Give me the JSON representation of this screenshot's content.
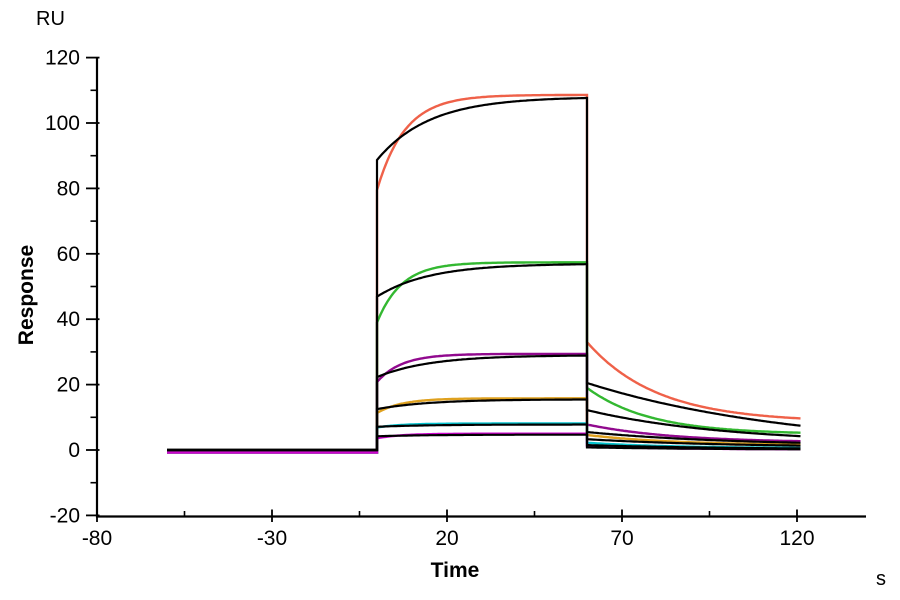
{
  "labels": {
    "y_unit": "RU",
    "y_title": "Response",
    "x_title": "Time",
    "x_unit": "s"
  },
  "axes": {
    "x": {
      "title": "Time",
      "unit": "s",
      "range": [
        -80,
        140
      ],
      "major_ticks": [
        -80,
        -30,
        20,
        70,
        120
      ],
      "minor_ticks": [
        -55,
        -5,
        45,
        95
      ]
    },
    "y": {
      "title": "Response",
      "unit": "RU",
      "range": [
        -20,
        120
      ],
      "major_ticks": [
        120,
        100,
        80,
        60,
        40,
        20,
        0,
        -20
      ],
      "minor_ticks": [
        110,
        90,
        70,
        50,
        30,
        10,
        -10
      ]
    }
  },
  "chart_data": {
    "type": "line",
    "description": "SPR sensorgram: six concentration traces (colored) with overlaid black kinetic fit curves; baseline, association and dissociation phases.",
    "grid": false,
    "legend": false,
    "phases": {
      "baseline": [
        -60,
        0
      ],
      "association": [
        0,
        60
      ],
      "dissociation": [
        60,
        121
      ]
    },
    "series": [
      {
        "name": "trace-1",
        "color": "#ef6149",
        "baseline": -0.8,
        "assoc": {
          "start": 79.5,
          "end": 108.6,
          "tau": 8
        },
        "dissoc": {
          "start": 33.0,
          "end_asymptote": 8.5,
          "tau": 20,
          "value_at_t121": 9.8
        }
      },
      {
        "name": "trace-2",
        "color": "#33b831",
        "baseline": -0.8,
        "assoc": {
          "start": 39.0,
          "end": 57.4,
          "tau": 7
        },
        "dissoc": {
          "start": 19.0,
          "end_asymptote": 4.8,
          "tau": 18,
          "value_at_t121": 5.3
        }
      },
      {
        "name": "trace-3",
        "color": "#91098e",
        "baseline": -0.8,
        "assoc": {
          "start": 20.8,
          "end": 29.4,
          "tau": 7
        },
        "dissoc": {
          "start": 7.8,
          "end_asymptote": 2.2,
          "tau": 25,
          "value_at_t121": 2.7
        }
      },
      {
        "name": "trace-4",
        "color": "#dfa11f",
        "baseline": -0.8,
        "assoc": {
          "start": 11.3,
          "end": 15.8,
          "tau": 7
        },
        "dissoc": {
          "start": 4.6,
          "end_asymptote": 1.4,
          "tau": 25,
          "value_at_t121": 1.8
        }
      },
      {
        "name": "trace-5",
        "color": "#06c3ce",
        "baseline": -0.8,
        "assoc": {
          "start": 6.9,
          "end": 8.1,
          "tau": 7
        },
        "dissoc": {
          "start": 2.2,
          "end_asymptote": 0.5,
          "tau": 25,
          "value_at_t121": 0.7
        }
      },
      {
        "name": "trace-6",
        "color": "#cf06cf",
        "baseline": -0.8,
        "assoc": {
          "start": 3.6,
          "end": 5.0,
          "tau": 7
        },
        "dissoc": {
          "start": 1.1,
          "end_asymptote": 0.15,
          "tau": 25,
          "value_at_t121": 0.3
        }
      }
    ],
    "fits": [
      {
        "name": "fit-1",
        "color": "#000000",
        "baseline": 0,
        "assoc": {
          "start": 88.7,
          "end": 108.0,
          "tau": 15
        },
        "dissoc": {
          "start": 20.5,
          "end_asymptote": 0.0,
          "tau": 60,
          "value_at_t121": 7.4
        }
      },
      {
        "name": "fit-2",
        "color": "#000000",
        "baseline": 0,
        "assoc": {
          "start": 46.9,
          "end": 57.0,
          "tau": 15
        },
        "dissoc": {
          "start": 12.2,
          "end_asymptote": 2.0,
          "tau": 40,
          "value_at_t121": 4.2
        }
      },
      {
        "name": "fit-3",
        "color": "#000000",
        "baseline": 0,
        "assoc": {
          "start": 22.3,
          "end": 29.0,
          "tau": 15
        },
        "dissoc": {
          "start": 5.5,
          "end_asymptote": 1.3,
          "tau": 40,
          "value_at_t121": 2.2
        }
      },
      {
        "name": "fit-4",
        "color": "#000000",
        "baseline": 0,
        "assoc": {
          "start": 12.5,
          "end": 15.5,
          "tau": 15
        },
        "dissoc": {
          "start": 3.3,
          "end_asymptote": 0.8,
          "tau": 40,
          "value_at_t121": 1.35
        }
      },
      {
        "name": "fit-5",
        "color": "#000000",
        "baseline": 0,
        "assoc": {
          "start": 7.1,
          "end": 7.8,
          "tau": 15
        },
        "dissoc": {
          "start": 1.5,
          "end_asymptote": 0.2,
          "tau": 40,
          "value_at_t121": 0.5
        }
      },
      {
        "name": "fit-6",
        "color": "#000000",
        "baseline": 0,
        "assoc": {
          "start": 4.2,
          "end": 4.7,
          "tau": 15
        },
        "dissoc": {
          "start": 0.8,
          "end_asymptote": 0.05,
          "tau": 40,
          "value_at_t121": 0.2
        }
      }
    ]
  }
}
